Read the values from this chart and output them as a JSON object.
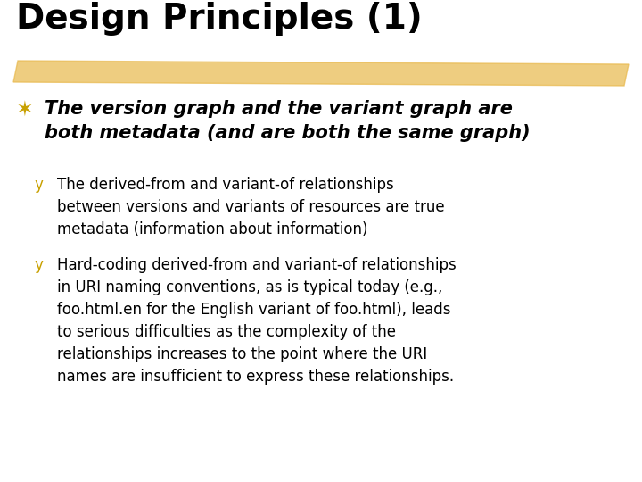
{
  "background_color": "#ffffff",
  "title": "Design Principles (1)",
  "title_fontsize": 28,
  "title_color": "#000000",
  "highlight_color": "#E8B84B",
  "highlight_alpha": 0.7,
  "bullet1_symbol": "✶",
  "bullet1_color": "#C8A000",
  "bullet1_text_line1": "The version graph and the variant graph are",
  "bullet1_text_line2": "both metadata (and are both the same graph)",
  "bullet1_fontsize": 15,
  "sub_bullet_symbol": "y",
  "sub_bullet_color": "#C8A000",
  "sub1_lines": [
    "The derived-from and variant-of relationships",
    "between versions and variants of resources are true",
    "metadata (information about information)"
  ],
  "sub2_lines": [
    "Hard-coding derived-from and variant-of relationships",
    "in URI naming conventions, as is typical today (e.g.,",
    "foo.html.en for the English variant of foo.html), leads",
    "to serious difficulties as the complexity of the",
    "relationships increases to the point where the URI",
    "names are insufficient to express these relationships."
  ],
  "sub_fontsize": 12,
  "text_color": "#000000"
}
